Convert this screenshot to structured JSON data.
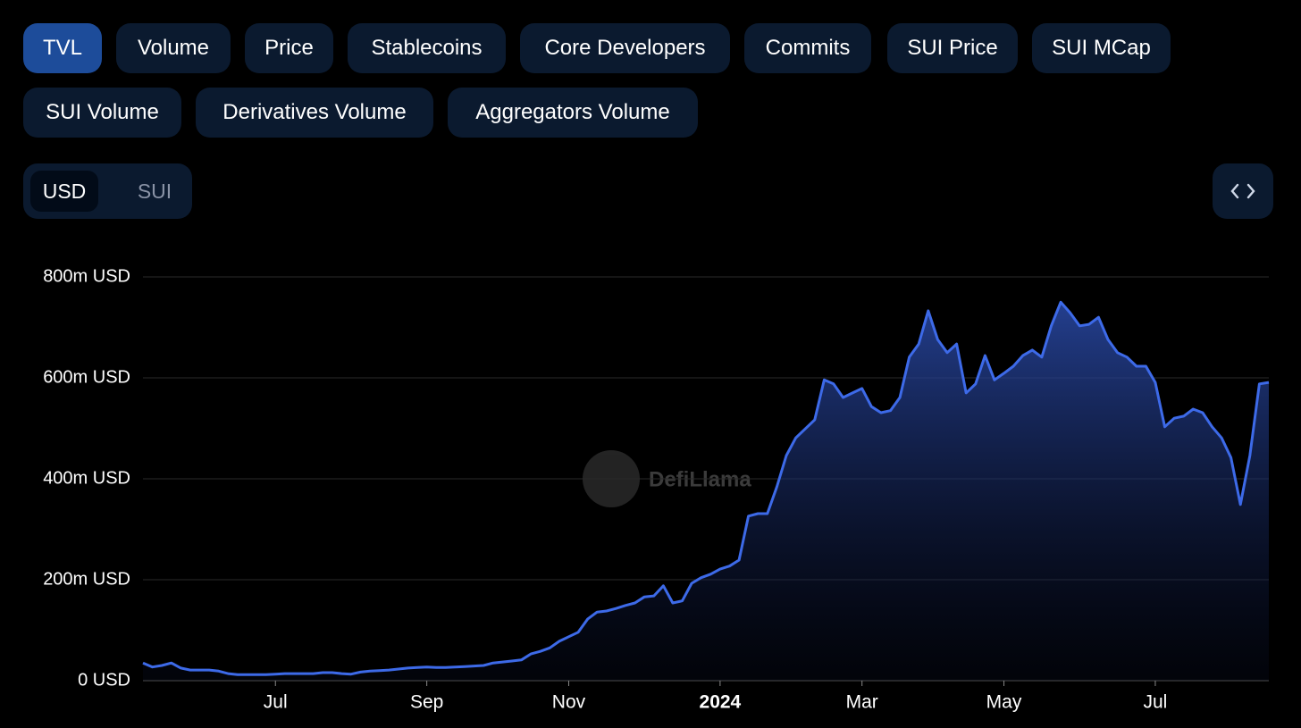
{
  "tabs": [
    "TVL",
    "Volume",
    "Price",
    "Stablecoins",
    "Core Developers",
    "Commits",
    "SUI Price",
    "SUI MCap",
    "SUI Volume",
    "Derivatives Volume",
    "Aggregators Volume"
  ],
  "toggle": {
    "options": [
      "USD",
      "SUI"
    ]
  },
  "chart_data": {
    "type": "area",
    "watermark": "DefiLlama",
    "color": "#3d6ae8",
    "grid": true,
    "ylim": [
      0,
      800
    ],
    "yticks": [
      {
        "value": 0,
        "label": "0 USD"
      },
      {
        "value": 200,
        "label": "200m USD"
      },
      {
        "value": 400,
        "label": "400m USD"
      },
      {
        "value": 600,
        "label": "600m USD"
      },
      {
        "value": 800,
        "label": "800m USD"
      }
    ],
    "categories": [
      null,
      null,
      null,
      null,
      null,
      null,
      null,
      null,
      null,
      null,
      null,
      null,
      null,
      null,
      "Jul",
      null,
      null,
      null,
      null,
      null,
      null,
      null,
      null,
      null,
      null,
      null,
      null,
      null,
      null,
      null,
      "Sep",
      null,
      null,
      null,
      null,
      null,
      null,
      null,
      null,
      null,
      null,
      null,
      null,
      null,
      null,
      "Nov",
      null,
      null,
      null,
      null,
      null,
      null,
      null,
      null,
      null,
      null,
      null,
      null,
      null,
      null,
      null,
      "2024",
      null,
      null,
      null,
      null,
      null,
      null,
      null,
      null,
      null,
      null,
      null,
      null,
      null,
      null,
      "Mar",
      null,
      null,
      null,
      null,
      null,
      null,
      null,
      null,
      null,
      null,
      null,
      null,
      null,
      null,
      "May",
      null,
      null,
      null,
      null,
      null,
      null,
      null,
      null,
      null,
      null,
      null,
      null,
      null,
      null,
      null,
      "Jul",
      null,
      null,
      null,
      null,
      null,
      null,
      null,
      null,
      null,
      null,
      null,
      null
    ],
    "values": [
      35,
      27,
      30,
      35,
      25,
      21,
      21,
      21,
      19,
      14,
      12,
      12,
      12,
      12,
      13,
      14,
      14,
      14,
      14,
      16,
      16,
      14,
      13,
      17,
      19,
      20,
      21,
      23,
      25,
      26,
      27,
      26,
      26,
      27,
      28,
      29,
      30,
      35,
      37,
      39,
      41,
      53,
      58,
      65,
      78,
      87,
      96,
      122,
      136,
      138,
      143,
      149,
      154,
      166,
      168,
      188,
      154,
      158,
      193,
      204,
      211,
      221,
      227,
      239,
      326,
      331,
      331,
      384,
      446,
      481,
      499,
      517,
      596,
      588,
      561,
      570,
      579,
      543,
      531,
      535,
      561,
      641,
      667,
      733,
      676,
      650,
      667,
      570,
      588,
      644,
      596,
      609,
      623,
      644,
      655,
      641,
      703,
      750,
      729,
      703,
      706,
      720,
      676,
      650,
      641,
      623,
      623,
      591,
      503,
      520,
      524,
      538,
      531,
      503,
      481,
      442,
      349,
      446,
      588,
      591
    ]
  }
}
